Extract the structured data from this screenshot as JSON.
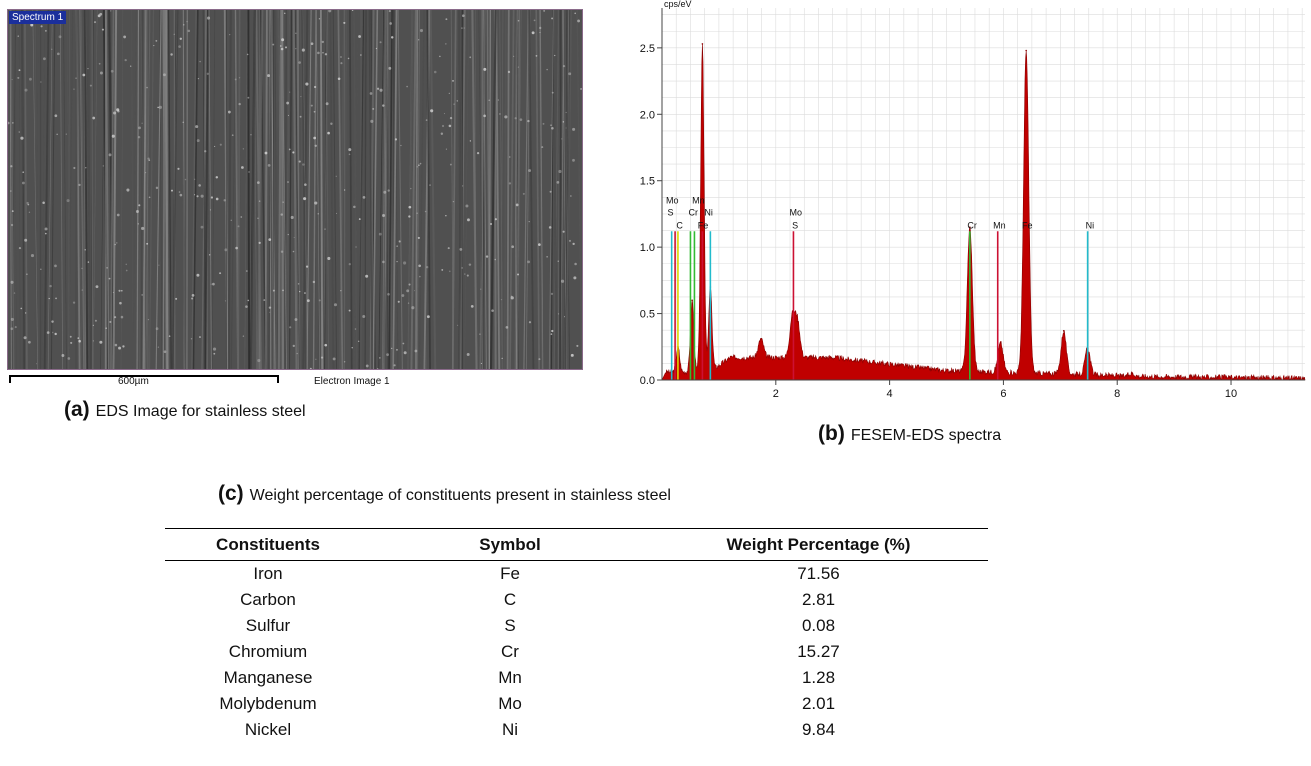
{
  "panel_a": {
    "overlay_label": "Spectrum 1",
    "scale_label": "600µm",
    "image_label": "Electron Image 1",
    "caption_letter": "(a)",
    "caption_text": "EDS Image for stainless steel"
  },
  "panel_b": {
    "caption_letter": "(b)",
    "caption_text": "FESEM-EDS spectra"
  },
  "panel_c": {
    "caption_letter": "(c)",
    "caption_text": "Weight percentage of constituents present in stainless steel",
    "columns": [
      "Constituents",
      "Symbol",
      "Weight Percentage (%)"
    ],
    "rows": [
      [
        "Iron",
        "Fe",
        "71.56"
      ],
      [
        "Carbon",
        "C",
        "2.81"
      ],
      [
        "Sulfur",
        "S",
        "0.08"
      ],
      [
        "Chromium",
        "Cr",
        "15.27"
      ],
      [
        "Manganese",
        "Mn",
        "1.28"
      ],
      [
        "Molybdenum",
        "Mo",
        "2.01"
      ],
      [
        "Nickel",
        "Ni",
        "9.84"
      ]
    ]
  },
  "chart_data": {
    "type": "area",
    "ylabel": "cps/eV",
    "xlim": [
      0,
      11.3
    ],
    "ylim": [
      0,
      2.8
    ],
    "x_ticks": [
      2,
      4,
      6,
      8,
      10
    ],
    "y_ticks": [
      0.0,
      0.5,
      1.0,
      1.5,
      2.0,
      2.5
    ],
    "grid": true,
    "colors": {
      "spectrum": "#c00000",
      "marker_red": "#cc1133",
      "marker_yellow": "#d8d800",
      "marker_green": "#33bb33",
      "marker_cyan": "#22bbcc"
    },
    "peaks": [
      {
        "x": 0.28,
        "y": 0.25
      },
      {
        "x": 0.53,
        "y": 0.6
      },
      {
        "x": 0.71,
        "y": 2.53
      },
      {
        "x": 0.85,
        "y": 0.7
      },
      {
        "x": 1.74,
        "y": 0.31
      },
      {
        "x": 2.29,
        "y": 0.47
      },
      {
        "x": 2.38,
        "y": 0.44
      },
      {
        "x": 5.41,
        "y": 1.15
      },
      {
        "x": 5.95,
        "y": 0.28
      },
      {
        "x": 6.4,
        "y": 2.48
      },
      {
        "x": 7.06,
        "y": 0.37
      },
      {
        "x": 7.48,
        "y": 0.24
      },
      {
        "x": 8.26,
        "y": 0.05
      }
    ],
    "element_markers": [
      {
        "x": 0.17,
        "y": 1.12,
        "color": "cyan"
      },
      {
        "x": 0.23,
        "y": 1.12,
        "color": "red"
      },
      {
        "x": 0.28,
        "y": 1.12,
        "color": "yellow"
      },
      {
        "x": 0.5,
        "y": 1.12,
        "color": "green"
      },
      {
        "x": 0.57,
        "y": 1.12,
        "color": "green"
      },
      {
        "x": 0.71,
        "y": 1.12,
        "color": "red"
      },
      {
        "x": 0.85,
        "y": 1.12,
        "color": "cyan"
      },
      {
        "x": 2.31,
        "y": 1.12,
        "color": "red"
      },
      {
        "x": 5.41,
        "y": 1.12,
        "color": "green"
      },
      {
        "x": 5.9,
        "y": 1.12,
        "color": "red"
      },
      {
        "x": 7.48,
        "y": 1.12,
        "color": "cyan"
      }
    ],
    "annotations": [
      {
        "x": 0.18,
        "y": 1.33,
        "text": "Mo"
      },
      {
        "x": 0.15,
        "y": 1.24,
        "text": "S"
      },
      {
        "x": 0.31,
        "y": 1.14,
        "text": "C"
      },
      {
        "x": 0.64,
        "y": 1.33,
        "text": "Mn"
      },
      {
        "x": 0.55,
        "y": 1.24,
        "text": "Cr"
      },
      {
        "x": 0.82,
        "y": 1.24,
        "text": "Ni"
      },
      {
        "x": 0.72,
        "y": 1.14,
        "text": "Fe"
      },
      {
        "x": 2.35,
        "y": 1.24,
        "text": "Mo"
      },
      {
        "x": 2.34,
        "y": 1.14,
        "text": "S"
      },
      {
        "x": 5.45,
        "y": 1.14,
        "text": "Cr"
      },
      {
        "x": 5.93,
        "y": 1.14,
        "text": "Mn"
      },
      {
        "x": 6.42,
        "y": 1.14,
        "text": "Fe"
      },
      {
        "x": 7.52,
        "y": 1.14,
        "text": "Ni"
      }
    ]
  }
}
